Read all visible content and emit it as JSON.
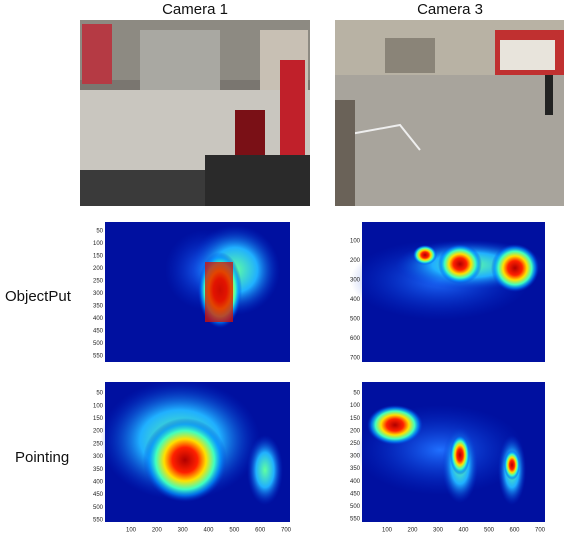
{
  "headers": [
    "Camera 1",
    "Camera 3"
  ],
  "rows": [
    {
      "label": "ObjectPut",
      "heatmaps": [
        {
          "yticks": [
            50,
            100,
            150,
            200,
            250,
            300,
            350,
            400,
            450,
            500,
            550
          ]
        },
        {
          "yticks": [
            100,
            200,
            300,
            400,
            500,
            600,
            700
          ]
        }
      ]
    },
    {
      "label": "Pointing",
      "heatmaps": [
        {
          "yticks": [
            50,
            100,
            150,
            200,
            250,
            300,
            350,
            400,
            450,
            500,
            550
          ],
          "xticks": [
            100,
            200,
            300,
            400,
            500,
            600,
            700
          ]
        },
        {
          "yticks": [
            50,
            100,
            150,
            200,
            250,
            300,
            350,
            400,
            450,
            500,
            550
          ],
          "xticks": [
            100,
            200,
            300,
            400,
            500,
            600,
            700
          ]
        }
      ]
    }
  ]
}
